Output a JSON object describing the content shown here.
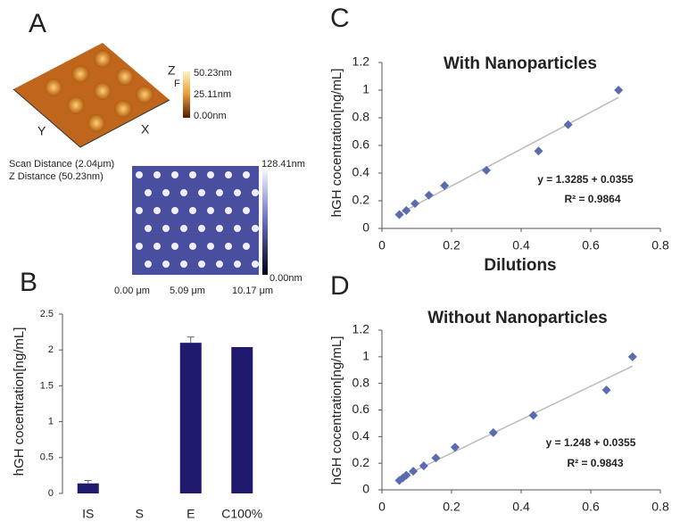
{
  "panel_a": {
    "panel": "A",
    "z_axis": "Z",
    "f_label": "F",
    "scale_top": "50.23nm",
    "scale_mid": "25.11nm",
    "scale_bottom": "0.00nm",
    "y_axis": "Y",
    "x_axis": "X",
    "scan_distance": "Scan Distance (2.04μm)",
    "z_distance": "Z Distance (50.23nm)",
    "map_scale_top": "128.41nm",
    "map_scale_bottom": "0.00nm",
    "map_x_start": "0.00 μm",
    "map_x_mid": "5.09 μm",
    "map_x_end": "10.17 μm"
  },
  "chart_data": [
    {
      "type": "bar",
      "panel": "B",
      "y_label": "hGH cocentration[ng/mL]",
      "categories": [
        "IS",
        "S",
        "E",
        "C100%"
      ],
      "values": [
        0.14,
        0,
        2.1,
        2.04
      ],
      "errors": [
        0.04,
        0,
        0.08,
        0
      ],
      "color": "#1f1a6e",
      "ylim": [
        0,
        2.5
      ],
      "yticks": [
        0,
        0.5,
        1,
        1.5,
        2,
        2.5
      ]
    },
    {
      "type": "scatter",
      "panel": "C",
      "title": "With Nanoparticles",
      "x_label": "Dilutions",
      "y_label": "hGH cocentration[ng/mL]",
      "x": [
        0.05,
        0.07,
        0.095,
        0.135,
        0.18,
        0.3,
        0.45,
        0.535,
        0.68
      ],
      "values": [
        0.1,
        0.13,
        0.18,
        0.24,
        0.31,
        0.42,
        0.56,
        0.75,
        1.0
      ],
      "color": "#5b6bb0",
      "xlim": [
        0,
        0.8
      ],
      "xticks": [
        0,
        0.2,
        0.4,
        0.6,
        0.8
      ],
      "ylim": [
        0,
        1.2
      ],
      "yticks": [
        0,
        0.2,
        0.4,
        0.6,
        0.8,
        1,
        1.2
      ],
      "annotations": [
        "y = 1.3285 + 0.0355",
        "R² = 0.9864"
      ]
    },
    {
      "type": "scatter",
      "panel": "D",
      "title": "Without Nanoparticles",
      "y_label": "hGH cocentration[ng/mL]",
      "x": [
        0.05,
        0.06,
        0.07,
        0.09,
        0.12,
        0.155,
        0.21,
        0.32,
        0.435,
        0.645,
        0.72
      ],
      "values": [
        0.07,
        0.09,
        0.11,
        0.14,
        0.18,
        0.24,
        0.32,
        0.43,
        0.56,
        0.75,
        1.0
      ],
      "color": "#5b6bb0",
      "xlim": [
        0,
        0.8
      ],
      "xticks": [
        0,
        0.2,
        0.4,
        0.6,
        0.8
      ],
      "ylim": [
        0,
        1.2
      ],
      "yticks": [
        0,
        0.2,
        0.4,
        0.6,
        0.8,
        1,
        1.2
      ],
      "annotations": [
        "y = 1.248 + 0.0355",
        "R² = 0.9843"
      ]
    }
  ]
}
